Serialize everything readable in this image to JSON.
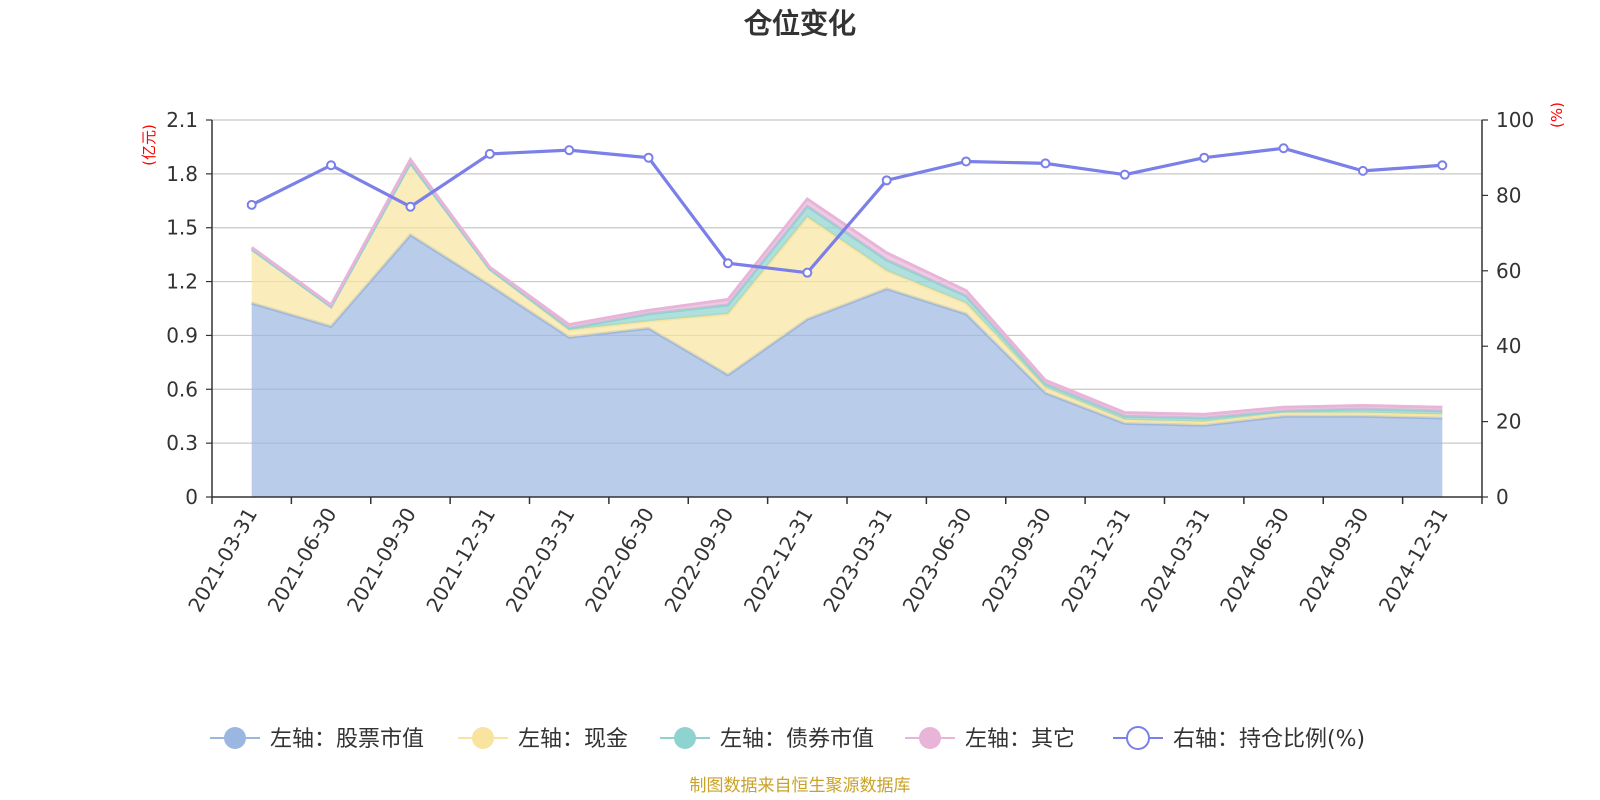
{
  "chart_data": {
    "type": "area",
    "title": "仓位变化",
    "categories": [
      "2021-03-31",
      "2021-06-30",
      "2021-09-30",
      "2021-12-31",
      "2022-03-31",
      "2022-06-30",
      "2022-09-30",
      "2022-12-31",
      "2023-03-31",
      "2023-06-30",
      "2023-09-30",
      "2023-12-31",
      "2024-03-31",
      "2024-06-30",
      "2024-09-30",
      "2024-12-31"
    ],
    "left_axis": {
      "unit": "(亿元)",
      "ylim": [
        0,
        2.1
      ],
      "ticks": [
        "0",
        "0.3",
        "0.6",
        "0.9",
        "1.2",
        "1.5",
        "1.8",
        "2.1"
      ]
    },
    "right_axis": {
      "unit": "(%)",
      "ylim": [
        0,
        100
      ],
      "ticks": [
        "0",
        "20",
        "40",
        "60",
        "80",
        "100"
      ]
    },
    "stacked": true,
    "series": [
      {
        "name": "左轴：股票市值",
        "axis": "left",
        "type": "area",
        "color": "#9bb6e0",
        "values": [
          1.08,
          0.95,
          1.46,
          1.18,
          0.89,
          0.94,
          0.68,
          0.99,
          1.16,
          1.02,
          0.58,
          0.41,
          0.4,
          0.45,
          0.45,
          0.44
        ]
      },
      {
        "name": "左轴：现金",
        "axis": "left",
        "type": "area",
        "color": "#f8e49e",
        "values": [
          0.3,
          0.11,
          0.4,
          0.09,
          0.04,
          0.04,
          0.34,
          0.57,
          0.1,
          0.06,
          0.03,
          0.02,
          0.02,
          0.02,
          0.02,
          0.02
        ]
      },
      {
        "name": "左轴：债券市值",
        "axis": "left",
        "type": "area",
        "color": "#8fd3d0",
        "values": [
          0.0,
          0.0,
          0.0,
          0.0,
          0.01,
          0.04,
          0.05,
          0.06,
          0.06,
          0.04,
          0.02,
          0.02,
          0.02,
          0.01,
          0.02,
          0.02
        ]
      },
      {
        "name": "左轴：其它",
        "axis": "left",
        "type": "area",
        "color": "#e8b4d8",
        "values": [
          0.01,
          0.01,
          0.02,
          0.01,
          0.02,
          0.02,
          0.03,
          0.04,
          0.04,
          0.03,
          0.02,
          0.02,
          0.02,
          0.02,
          0.02,
          0.02
        ]
      },
      {
        "name": "右轴：持仓比例(%)",
        "axis": "right",
        "type": "line",
        "color": "#7b7fe8",
        "values": [
          77.5,
          88.0,
          77.0,
          91.0,
          92.0,
          90.0,
          62.0,
          59.5,
          84.0,
          89.0,
          88.5,
          85.5,
          90.0,
          92.5,
          86.5,
          88.0
        ]
      }
    ],
    "legend_position": "bottom",
    "grid": true
  },
  "source_note": "制图数据来自恒生聚源数据库"
}
